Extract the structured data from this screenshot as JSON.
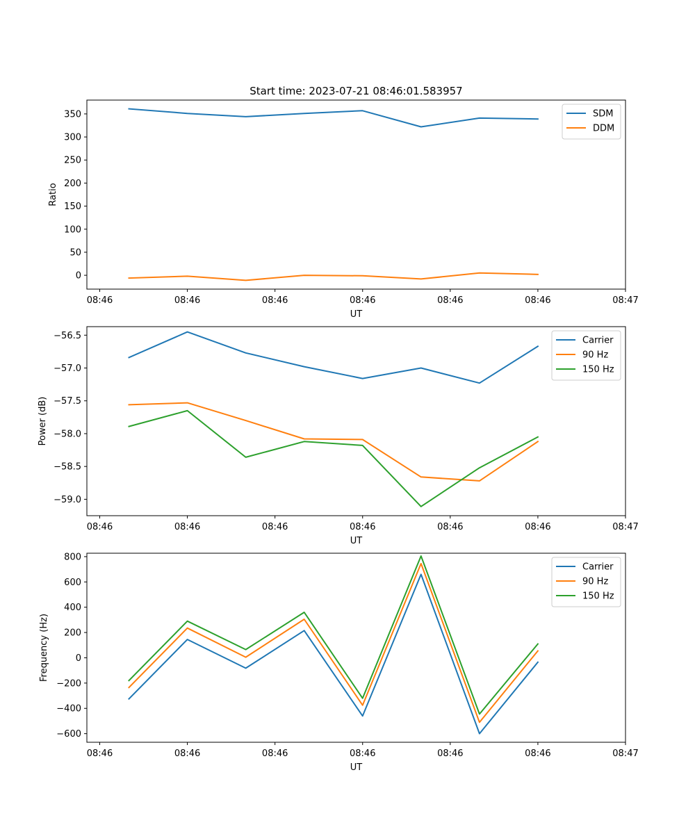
{
  "colors": {
    "blue": "#1f77b4",
    "orange": "#ff7f0e",
    "green": "#2ca02c"
  },
  "chart_data": [
    {
      "type": "line",
      "title": "Start time: 2023-07-21 08:46:01.583957",
      "xlabel": "UT",
      "ylabel": "Ratio",
      "x": [
        1,
        2,
        3,
        4,
        5,
        6,
        7,
        8
      ],
      "xlim": [
        0.28,
        9.5
      ],
      "xticks": [
        0.5,
        2,
        3.5,
        5,
        6.5,
        8,
        9.5
      ],
      "xtick_labels": [
        "08:46",
        "08:46",
        "08:46",
        "08:46",
        "08:46",
        "08:46",
        "08:47"
      ],
      "ylim": [
        -30,
        380
      ],
      "yticks": [
        0,
        50,
        100,
        150,
        200,
        250,
        300,
        350
      ],
      "ytick_labels": [
        "0",
        "50",
        "100",
        "150",
        "200",
        "250",
        "300",
        "350"
      ],
      "legend_position": "top-right",
      "series": [
        {
          "name": "SDM",
          "color": "#1f77b4",
          "values": [
            361,
            351,
            344,
            351,
            357,
            322,
            341,
            339
          ]
        },
        {
          "name": "DDM",
          "color": "#ff7f0e",
          "values": [
            -6,
            -2,
            -11,
            0,
            -1,
            -8,
            5,
            2
          ]
        }
      ]
    },
    {
      "type": "line",
      "xlabel": "UT",
      "ylabel": "Power (dB)",
      "x": [
        1,
        2,
        3,
        4,
        5,
        6,
        7,
        8
      ],
      "xlim": [
        0.28,
        9.5
      ],
      "xticks": [
        0.5,
        2,
        3.5,
        5,
        6.5,
        8,
        9.5
      ],
      "xtick_labels": [
        "08:46",
        "08:46",
        "08:46",
        "08:46",
        "08:46",
        "08:46",
        "08:47"
      ],
      "ylim": [
        -59.25,
        -56.37
      ],
      "yticks": [
        -56.5,
        -57.0,
        -57.5,
        -58.0,
        -58.5,
        -59.0
      ],
      "ytick_labels": [
        "−56.5",
        "−57.0",
        "−57.5",
        "−58.0",
        "−58.5",
        "−59.0"
      ],
      "legend_position": "top-right",
      "series": [
        {
          "name": "Carrier",
          "color": "#1f77b4",
          "values": [
            -56.84,
            -56.45,
            -56.77,
            -56.98,
            -57.16,
            -57.0,
            -57.23,
            -56.67
          ]
        },
        {
          "name": "90 Hz",
          "color": "#ff7f0e",
          "values": [
            -57.56,
            -57.53,
            -57.8,
            -58.08,
            -58.09,
            -58.66,
            -58.72,
            -58.12
          ]
        },
        {
          "name": "150 Hz",
          "color": "#2ca02c",
          "values": [
            -57.89,
            -57.65,
            -58.36,
            -58.12,
            -58.18,
            -59.11,
            -58.52,
            -58.05
          ]
        }
      ]
    },
    {
      "type": "line",
      "xlabel": "UT",
      "ylabel": "Frequency (Hz)",
      "x": [
        1,
        2,
        3,
        4,
        5,
        6,
        7,
        8
      ],
      "xlim": [
        0.28,
        9.5
      ],
      "xticks": [
        0.5,
        2,
        3.5,
        5,
        6.5,
        8,
        9.5
      ],
      "xtick_labels": [
        "08:46",
        "08:46",
        "08:46",
        "08:46",
        "08:46",
        "08:46",
        "08:47"
      ],
      "ylim": [
        -668,
        827
      ],
      "yticks": [
        800,
        600,
        400,
        200,
        0,
        -200,
        -400,
        -600
      ],
      "ytick_labels": [
        "800",
        "600",
        "400",
        "200",
        "0",
        "−200",
        "−400",
        "−600"
      ],
      "legend_position": "top-right",
      "series": [
        {
          "name": "Carrier",
          "color": "#1f77b4",
          "values": [
            -325,
            145,
            -82,
            215,
            -460,
            660,
            -600,
            -35
          ]
        },
        {
          "name": "90 Hz",
          "color": "#ff7f0e",
          "values": [
            -235,
            235,
            5,
            305,
            -375,
            745,
            -510,
            55
          ]
        },
        {
          "name": "150 Hz",
          "color": "#2ca02c",
          "values": [
            -180,
            290,
            65,
            360,
            -320,
            805,
            -445,
            110
          ]
        }
      ]
    }
  ]
}
